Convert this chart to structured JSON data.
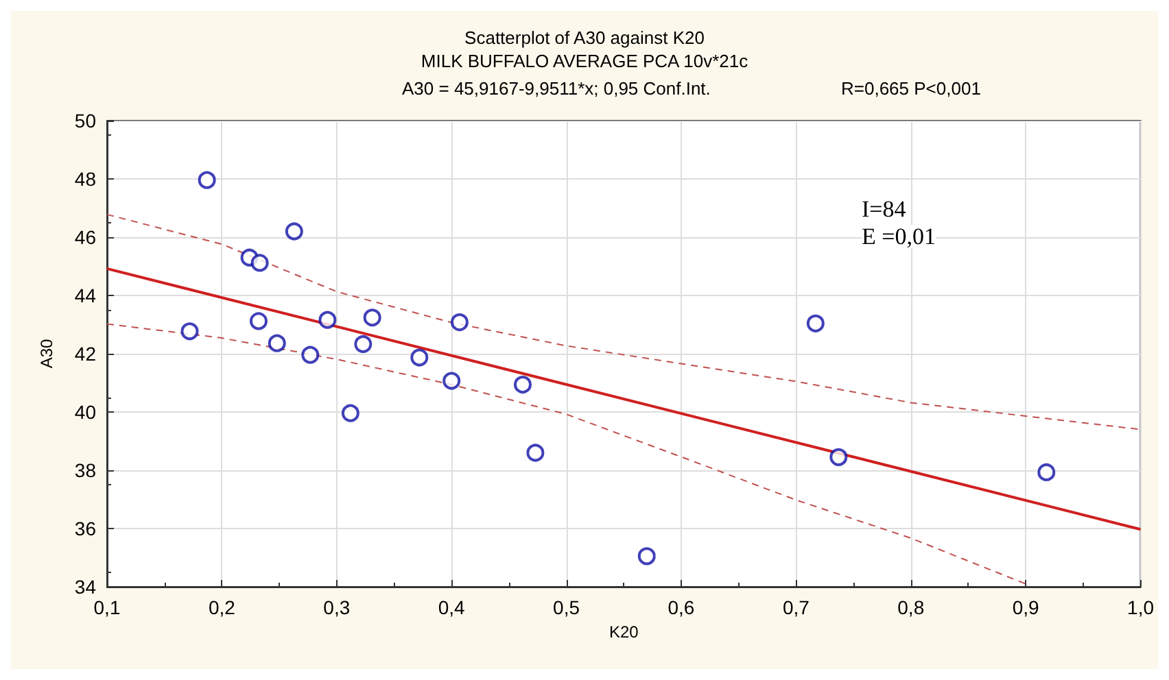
{
  "chart_data": {
    "type": "scatter",
    "title": "Scatterplot of A30 against K20",
    "subtitle": "MILK BUFFALO AVERAGE PCA 10v*21c",
    "annotations": [
      "A30 = 45,9167-9,9511*x; 0,95 Conf.Int.",
      "R=0,665 P<0,001",
      "I=84",
      "E =0,01"
    ],
    "xlabel": "K20",
    "ylabel": "A30",
    "xlim": [
      0.1,
      1.0
    ],
    "xticks": [
      {
        "value": 0.1,
        "label": "0,1"
      },
      {
        "value": 0.2,
        "label": "0,2"
      },
      {
        "value": 0.3,
        "label": "0,3"
      },
      {
        "value": 0.4,
        "label": "0,4"
      },
      {
        "value": 0.5,
        "label": "0,5"
      },
      {
        "value": 0.6,
        "label": "0,6"
      },
      {
        "value": 0.7,
        "label": "0,7"
      },
      {
        "value": 0.8,
        "label": "0,8"
      },
      {
        "value": 0.9,
        "label": "0,9"
      },
      {
        "value": 1.0,
        "label": "1,0"
      }
    ],
    "ylim": [
      34,
      50
    ],
    "yticks": [
      34,
      36,
      38,
      40,
      42,
      44,
      46,
      48,
      50
    ],
    "grid": true,
    "series": [
      {
        "marker": "circle",
        "color": "#1010a8",
        "x": [
          0.172,
          0.187,
          0.224,
          0.233,
          0.232,
          0.248,
          0.263,
          0.277,
          0.292,
          0.312,
          0.323,
          0.331,
          0.372,
          0.4,
          0.407,
          0.462,
          0.473,
          0.57,
          0.717,
          0.737,
          0.918
        ],
        "values": [
          42.77,
          47.96,
          45.3,
          45.12,
          43.12,
          42.36,
          46.2,
          41.96,
          43.16,
          39.96,
          42.33,
          43.24,
          41.87,
          41.07,
          43.08,
          40.94,
          38.6,
          35.05,
          43.04,
          38.45,
          37.93
        ]
      },
      {
        "type": "line",
        "marker": "none",
        "color": "#d02020",
        "line_style": "solid",
        "x": [
          0.1,
          1.0
        ],
        "values": [
          44.92,
          35.97
        ]
      },
      {
        "type": "line",
        "marker": "none",
        "color": "#c05050",
        "line_style": "dashed",
        "x": [
          0.1,
          0.2,
          0.3,
          0.4,
          0.5,
          0.6,
          0.7,
          0.8,
          0.9,
          1.0
        ],
        "values": [
          46.78,
          45.76,
          44.13,
          43.07,
          42.27,
          41.66,
          41.05,
          40.32,
          39.86,
          39.4
        ]
      },
      {
        "type": "line",
        "marker": "none",
        "color": "#c05050",
        "line_style": "dashed",
        "x": [
          0.1,
          0.2,
          0.3,
          0.4,
          0.5,
          0.6,
          0.7,
          0.8,
          0.9
        ],
        "values": [
          43.02,
          42.54,
          41.81,
          40.94,
          39.92,
          38.46,
          36.98,
          35.67,
          34.1
        ]
      }
    ]
  }
}
